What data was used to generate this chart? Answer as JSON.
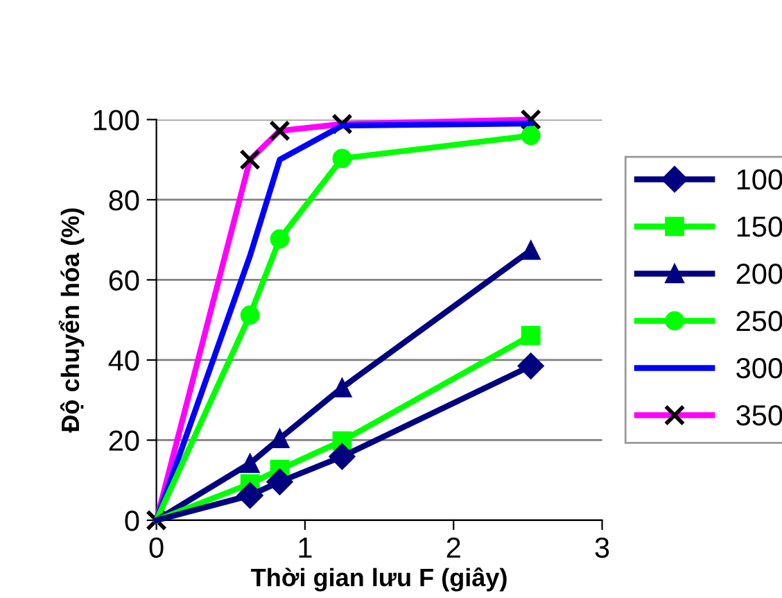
{
  "chart_data": {
    "type": "line",
    "xlabel": "Thời gian lưu F (giây)",
    "ylabel": "Độ chuyển hóa (%)",
    "xlim": [
      0,
      3
    ],
    "xticks": [
      0,
      1,
      2,
      3
    ],
    "ylim": [
      0,
      100
    ],
    "yticks": [
      0,
      20,
      40,
      60,
      80,
      100
    ],
    "grid": "y",
    "legend": "right",
    "x": [
      0,
      0.63,
      0.83,
      1.25,
      2.52
    ],
    "series": [
      {
        "name": "100",
        "color": "#000080",
        "marker": "diamond",
        "values": [
          0,
          6.2,
          9.6,
          15.9,
          38.5
        ]
      },
      {
        "name": "150",
        "color": "#00ff00",
        "marker": "square",
        "values": [
          0,
          9.1,
          12.7,
          19.8,
          46.1
        ]
      },
      {
        "name": "200",
        "color": "#000080",
        "marker": "triangle",
        "values": [
          0,
          14.2,
          20.4,
          33.1,
          67.4
        ]
      },
      {
        "name": "250",
        "color": "#00ff00",
        "marker": "circle",
        "values": [
          0,
          51.2,
          70.2,
          90.3,
          96.0
        ]
      },
      {
        "name": "300",
        "color": "#0000ff",
        "marker": "none",
        "values": [
          0,
          66,
          90,
          98.5,
          99
        ]
      },
      {
        "name": "350",
        "color": "#ff00ff",
        "marker": "cross",
        "values": [
          0,
          90,
          97.2,
          98.9,
          100
        ]
      }
    ]
  }
}
